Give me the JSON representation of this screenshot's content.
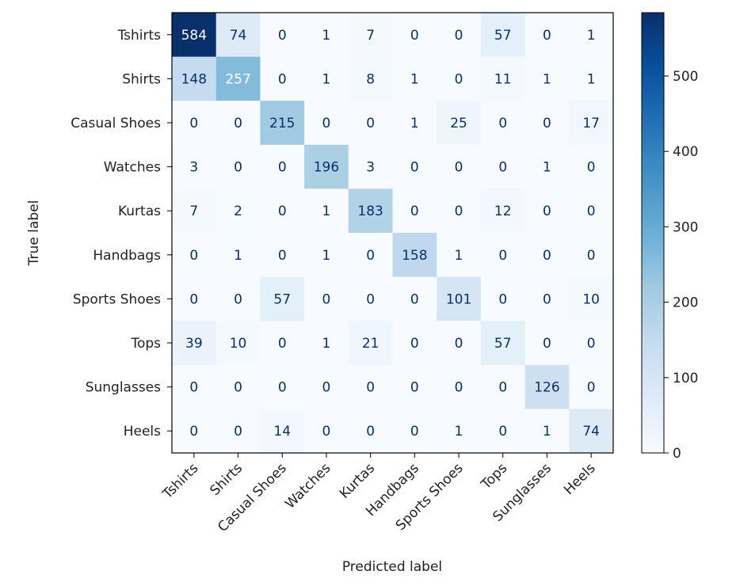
{
  "chart_data": {
    "type": "heatmap",
    "title": "",
    "xlabel": "Predicted label",
    "ylabel": "True label",
    "x_categories": [
      "Tshirts",
      "Shirts",
      "Casual Shoes",
      "Watches",
      "Kurtas",
      "Handbags",
      "Sports Shoes",
      "Tops",
      "Sunglasses",
      "Heels"
    ],
    "y_categories": [
      "Tshirts",
      "Shirts",
      "Casual Shoes",
      "Watches",
      "Kurtas",
      "Handbags",
      "Sports Shoes",
      "Tops",
      "Sunglasses",
      "Heels"
    ],
    "values": [
      [
        584,
        74,
        0,
        1,
        7,
        0,
        0,
        57,
        0,
        1
      ],
      [
        148,
        257,
        0,
        1,
        8,
        1,
        0,
        11,
        1,
        1
      ],
      [
        0,
        0,
        215,
        0,
        0,
        1,
        25,
        0,
        0,
        17
      ],
      [
        3,
        0,
        0,
        196,
        3,
        0,
        0,
        0,
        1,
        0
      ],
      [
        7,
        2,
        0,
        1,
        183,
        0,
        0,
        12,
        0,
        0
      ],
      [
        0,
        1,
        0,
        1,
        0,
        158,
        1,
        0,
        0,
        0
      ],
      [
        0,
        0,
        57,
        0,
        0,
        0,
        101,
        0,
        0,
        10
      ],
      [
        39,
        10,
        0,
        1,
        21,
        0,
        0,
        57,
        0,
        0
      ],
      [
        0,
        0,
        0,
        0,
        0,
        0,
        0,
        0,
        126,
        0
      ],
      [
        0,
        0,
        14,
        0,
        0,
        0,
        1,
        0,
        1,
        74
      ]
    ],
    "colormap": "Blues",
    "colorbar": {
      "range": [
        0,
        584
      ],
      "ticks": [
        0,
        100,
        200,
        300,
        400,
        500
      ],
      "tick_labels": [
        "0",
        "100",
        "200",
        "300",
        "400",
        "500"
      ]
    },
    "grid": false,
    "x_tick_rotation": "45 degrees"
  }
}
